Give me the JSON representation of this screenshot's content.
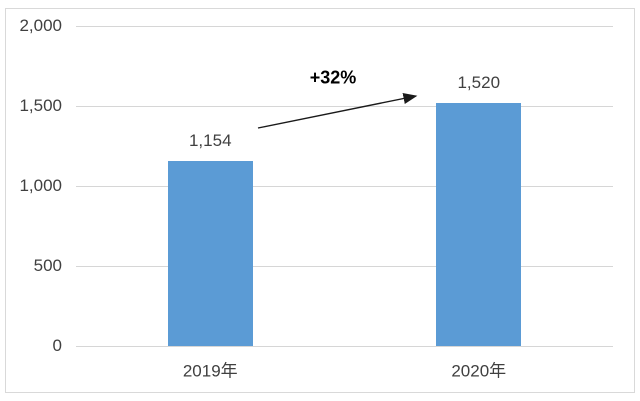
{
  "chart_data": {
    "type": "bar",
    "categories": [
      "2019年",
      "2020年"
    ],
    "values": [
      1154,
      1520
    ],
    "data_labels": [
      "1,154",
      "1,520"
    ],
    "yticks": [
      0,
      500,
      1000,
      1500,
      2000
    ],
    "ytick_labels": [
      "0",
      "500",
      "1,000",
      "1,500",
      "2,000"
    ],
    "ylim": [
      0,
      2000
    ],
    "grid": true,
    "legend": "none",
    "annotation": {
      "text": "+32%"
    },
    "colors": {
      "bar": "#5b9bd5",
      "gridline": "#d6d6d6",
      "axis_text": "#404040",
      "annotation_text": "#000000",
      "frame_border": "#d9d9d9"
    }
  }
}
